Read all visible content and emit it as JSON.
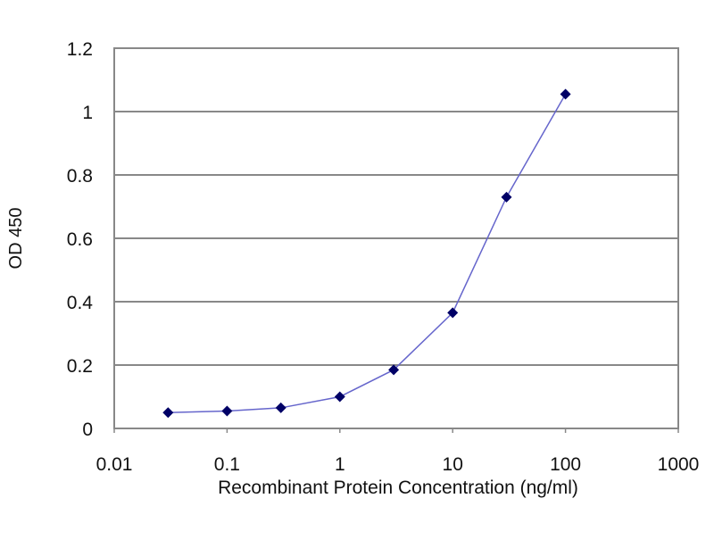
{
  "chart_data": {
    "type": "line",
    "title": "",
    "xlabel": "Recombinant Protein Concentration (ng/ml)",
    "ylabel": "OD 450",
    "xscale": "log",
    "xlim": [
      0.01,
      1000
    ],
    "ylim": [
      0,
      1.2
    ],
    "xticks": [
      "0.01",
      "0.1",
      "1",
      "10",
      "100",
      "1000"
    ],
    "yticks": [
      "0",
      "0.2",
      "0.4",
      "0.6",
      "0.8",
      "1",
      "1.2"
    ],
    "grid": "horizontal",
    "legend": "none",
    "series": [
      {
        "x": [
          0.03,
          0.1,
          0.3,
          1,
          3,
          10,
          30,
          100
        ],
        "y": [
          0.05,
          0.055,
          0.065,
          0.1,
          0.185,
          0.365,
          0.73,
          1.055
        ],
        "line_color": "#6666cc",
        "marker_color": "#000066"
      }
    ]
  }
}
